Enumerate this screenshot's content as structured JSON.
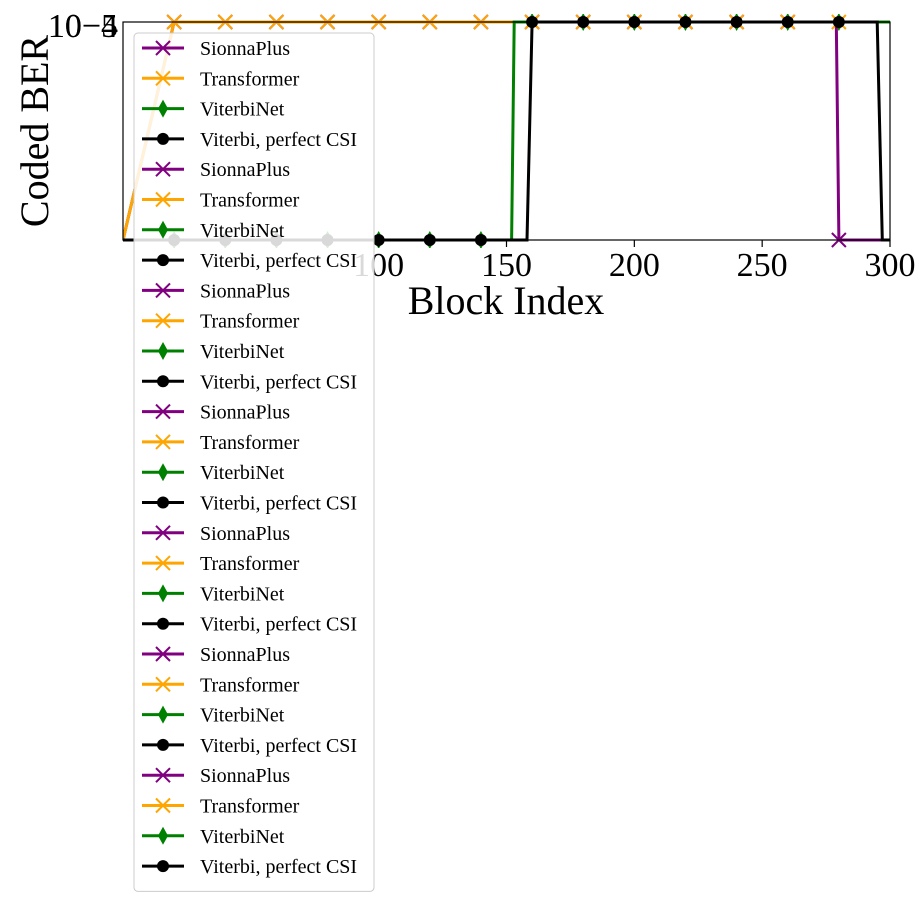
{
  "chart_data": {
    "type": "line",
    "xlabel": "Block Index",
    "ylabel": "Coded BER",
    "xlim": [
      0,
      300
    ],
    "x_ticks": [
      {
        "value": 100,
        "label": "100"
      },
      {
        "value": 150,
        "label": "150"
      },
      {
        "value": 200,
        "label": "200"
      },
      {
        "value": 250,
        "label": "250"
      },
      {
        "value": 300,
        "label": "300"
      }
    ],
    "y_scale": "log",
    "ylim": [
      1e-05,
      0.0001
    ],
    "y_tick_labels": [
      "10−4",
      "10−5"
    ],
    "grid": false,
    "legend_position": "upper-left",
    "series": [
      {
        "name": "SionnaPlus",
        "color": "#800080",
        "marker": "x",
        "x": [
          0,
          20,
          40,
          60,
          80,
          100,
          120,
          140,
          160,
          180,
          200,
          220,
          240,
          260,
          279,
          280,
          300
        ],
        "y": [
          1e-05,
          0.0001,
          0.0001,
          0.0001,
          0.0001,
          0.0001,
          0.0001,
          0.0001,
          0.0001,
          0.0001,
          0.0001,
          0.0001,
          0.0001,
          0.0001,
          0.0001,
          1e-05,
          1e-05
        ]
      },
      {
        "name": "Transformer",
        "color": "#FFA500",
        "marker": "x",
        "x": [
          0,
          20,
          40,
          60,
          80,
          100,
          120,
          140,
          160,
          180,
          200,
          220,
          240,
          260,
          280,
          300
        ],
        "y": [
          1e-05,
          0.0001,
          0.0001,
          0.0001,
          0.0001,
          0.0001,
          0.0001,
          0.0001,
          0.0001,
          0.0001,
          0.0001,
          0.0001,
          0.0001,
          0.0001,
          0.0001,
          0.0001
        ]
      },
      {
        "name": "ViterbiNet",
        "color": "#008000",
        "marker": "diamond",
        "x": [
          0,
          20,
          40,
          60,
          80,
          100,
          120,
          140,
          152,
          153,
          160,
          180,
          200,
          220,
          240,
          260,
          280,
          300
        ],
        "y": [
          1e-05,
          1e-05,
          1e-05,
          1e-05,
          1e-05,
          1e-05,
          1e-05,
          1e-05,
          1e-05,
          0.0001,
          0.0001,
          0.0001,
          0.0001,
          0.0001,
          0.0001,
          0.0001,
          0.0001,
          0.0001
        ]
      },
      {
        "name": "Viterbi, perfect CSI",
        "color": "#000000",
        "marker": "circle",
        "x": [
          0,
          20,
          40,
          60,
          80,
          100,
          120,
          140,
          158,
          160,
          180,
          200,
          220,
          240,
          260,
          280,
          295,
          297,
          300
        ],
        "y": [
          1e-05,
          1e-05,
          1e-05,
          1e-05,
          1e-05,
          1e-05,
          1e-05,
          1e-05,
          1e-05,
          0.0001,
          0.0001,
          0.0001,
          0.0001,
          0.0001,
          0.0001,
          0.0001,
          0.0001,
          1e-05,
          1e-05
        ]
      }
    ],
    "legend_entries": [
      "SionnaPlus",
      "Transformer",
      "ViterbiNet",
      "Viterbi, perfect CSI",
      "SionnaPlus",
      "Transformer",
      "ViterbiNet",
      "Viterbi, perfect CSI",
      "SionnaPlus",
      "Transformer",
      "ViterbiNet",
      "Viterbi, perfect CSI",
      "SionnaPlus",
      "Transformer",
      "ViterbiNet",
      "Viterbi, perfect CSI",
      "SionnaPlus",
      "Transformer",
      "ViterbiNet",
      "Viterbi, perfect CSI",
      "SionnaPlus",
      "Transformer",
      "ViterbiNet",
      "Viterbi, perfect CSI",
      "SionnaPlus",
      "Transformer",
      "ViterbiNet",
      "Viterbi, perfect CSI"
    ]
  }
}
